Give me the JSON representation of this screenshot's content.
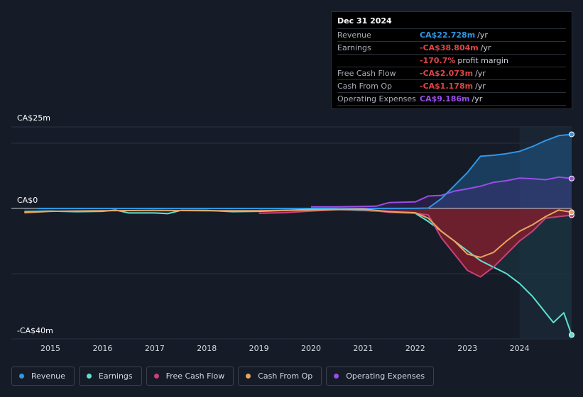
{
  "tooltip": {
    "date": "Dec 31 2024",
    "rows": [
      {
        "label": "Revenue",
        "value": "CA$22.728m",
        "unit": "/yr",
        "color": "#2f96e6"
      },
      {
        "label": "Earnings",
        "value": "-CA$38.804m",
        "unit": "/yr",
        "color": "#e04545"
      },
      {
        "label": "",
        "value": "-170.7%",
        "unit": "profit margin",
        "color": "#e04545"
      },
      {
        "label": "Free Cash Flow",
        "value": "-CA$2.073m",
        "unit": "/yr",
        "color": "#e04545"
      },
      {
        "label": "Cash From Op",
        "value": "-CA$1.178m",
        "unit": "/yr",
        "color": "#e04545"
      },
      {
        "label": "Operating Expenses",
        "value": "CA$9.186m",
        "unit": "/yr",
        "color": "#9b4de8"
      }
    ]
  },
  "axis": {
    "top_label": "CA$25m",
    "zero_label": "CA$0",
    "bottom_label": "-CA$40m"
  },
  "legend": [
    {
      "name": "Revenue",
      "color": "#2f96e6"
    },
    {
      "name": "Earnings",
      "color": "#5fe0cf"
    },
    {
      "name": "Free Cash Flow",
      "color": "#c9407b"
    },
    {
      "name": "Cash From Op",
      "color": "#eaa35e"
    },
    {
      "name": "Operating Expenses",
      "color": "#9b4de8"
    }
  ],
  "chart_data": {
    "type": "line",
    "title": "",
    "xlabel": "",
    "ylabel": "",
    "units": "CA$ millions",
    "xlim": [
      2014.25,
      2025.0
    ],
    "ylim": [
      -40,
      25
    ],
    "x_ticks": [
      "2015",
      "2016",
      "2017",
      "2018",
      "2019",
      "2020",
      "2021",
      "2022",
      "2023",
      "2024"
    ],
    "series": [
      {
        "name": "Revenue",
        "color": "#2f96e6",
        "points": [
          [
            2014.75,
            0
          ],
          [
            2016,
            0
          ],
          [
            2018,
            0
          ],
          [
            2020,
            0
          ],
          [
            2021,
            0
          ],
          [
            2022,
            0.02
          ],
          [
            2022.25,
            0.1
          ],
          [
            2022.5,
            3
          ],
          [
            2022.75,
            7
          ],
          [
            2023,
            11
          ],
          [
            2023.25,
            16
          ],
          [
            2023.5,
            16.3
          ],
          [
            2023.75,
            16.8
          ],
          [
            2024,
            17.5
          ],
          [
            2024.25,
            19
          ],
          [
            2024.5,
            20.8
          ],
          [
            2024.75,
            22.3
          ],
          [
            2025,
            22.728
          ]
        ]
      },
      {
        "name": "Earnings",
        "color": "#5fe0cf",
        "points": [
          [
            2014.5,
            -1
          ],
          [
            2015,
            -0.8
          ],
          [
            2015.5,
            -1
          ],
          [
            2016,
            -0.9
          ],
          [
            2016.25,
            -0.5
          ],
          [
            2016.5,
            -1.4
          ],
          [
            2017,
            -1.4
          ],
          [
            2017.25,
            -1.6
          ],
          [
            2017.5,
            -0.6
          ],
          [
            2018,
            -0.6
          ],
          [
            2018.5,
            -1
          ],
          [
            2019,
            -0.9
          ],
          [
            2019.5,
            -0.6
          ],
          [
            2020,
            -0.3
          ],
          [
            2020.5,
            -0.3
          ],
          [
            2021,
            -0.6
          ],
          [
            2021.5,
            -1
          ],
          [
            2022,
            -1.5
          ],
          [
            2022.25,
            -4
          ],
          [
            2022.5,
            -7
          ],
          [
            2022.75,
            -10
          ],
          [
            2023,
            -13
          ],
          [
            2023.25,
            -16
          ],
          [
            2023.5,
            -18
          ],
          [
            2023.75,
            -20
          ],
          [
            2024,
            -23
          ],
          [
            2024.25,
            -27
          ],
          [
            2024.5,
            -32
          ],
          [
            2024.65,
            -35
          ],
          [
            2024.85,
            -32
          ],
          [
            2025,
            -38.804
          ]
        ]
      },
      {
        "name": "Free Cash Flow",
        "color": "#c9407b",
        "points": [
          [
            2019,
            -1.5
          ],
          [
            2019.5,
            -1.3
          ],
          [
            2020,
            -0.8
          ],
          [
            2020.5,
            -0.4
          ],
          [
            2021,
            -0.4
          ],
          [
            2021.5,
            -1.2
          ],
          [
            2022,
            -1.5
          ],
          [
            2022.25,
            -2
          ],
          [
            2022.5,
            -9
          ],
          [
            2022.75,
            -14
          ],
          [
            2023,
            -19
          ],
          [
            2023.25,
            -21
          ],
          [
            2023.5,
            -18
          ],
          [
            2023.75,
            -14
          ],
          [
            2024,
            -10
          ],
          [
            2024.25,
            -7
          ],
          [
            2024.5,
            -3
          ],
          [
            2024.75,
            -2.5
          ],
          [
            2025,
            -2.073
          ]
        ]
      },
      {
        "name": "Cash From Op",
        "color": "#eaa35e",
        "points": [
          [
            2014.5,
            -1.3
          ],
          [
            2015,
            -0.9
          ],
          [
            2016,
            -0.7
          ],
          [
            2017,
            -0.6
          ],
          [
            2018,
            -0.7
          ],
          [
            2019,
            -0.7
          ],
          [
            2020,
            -0.5
          ],
          [
            2021,
            -0.2
          ],
          [
            2021.5,
            -1
          ],
          [
            2022,
            -1.3
          ],
          [
            2022.25,
            -3
          ],
          [
            2022.5,
            -7
          ],
          [
            2022.75,
            -10
          ],
          [
            2023,
            -14
          ],
          [
            2023.25,
            -15
          ],
          [
            2023.5,
            -13.5
          ],
          [
            2023.75,
            -10
          ],
          [
            2024,
            -7
          ],
          [
            2024.25,
            -5
          ],
          [
            2024.5,
            -2.5
          ],
          [
            2024.75,
            -0.5
          ],
          [
            2025,
            -1.178
          ]
        ]
      },
      {
        "name": "Operating Expenses",
        "color": "#9b4de8",
        "points": [
          [
            2020,
            0.5
          ],
          [
            2020.5,
            0.5
          ],
          [
            2021,
            0.6
          ],
          [
            2021.25,
            0.7
          ],
          [
            2021.5,
            1.8
          ],
          [
            2022,
            2
          ],
          [
            2022.25,
            3.8
          ],
          [
            2022.5,
            4
          ],
          [
            2022.75,
            5.3
          ],
          [
            2023,
            6
          ],
          [
            2023.25,
            6.8
          ],
          [
            2023.5,
            8
          ],
          [
            2023.75,
            8.5
          ],
          [
            2024,
            9.3
          ],
          [
            2024.25,
            9.1
          ],
          [
            2024.5,
            8.8
          ],
          [
            2024.75,
            9.6
          ],
          [
            2025,
            9.186
          ]
        ]
      }
    ]
  }
}
